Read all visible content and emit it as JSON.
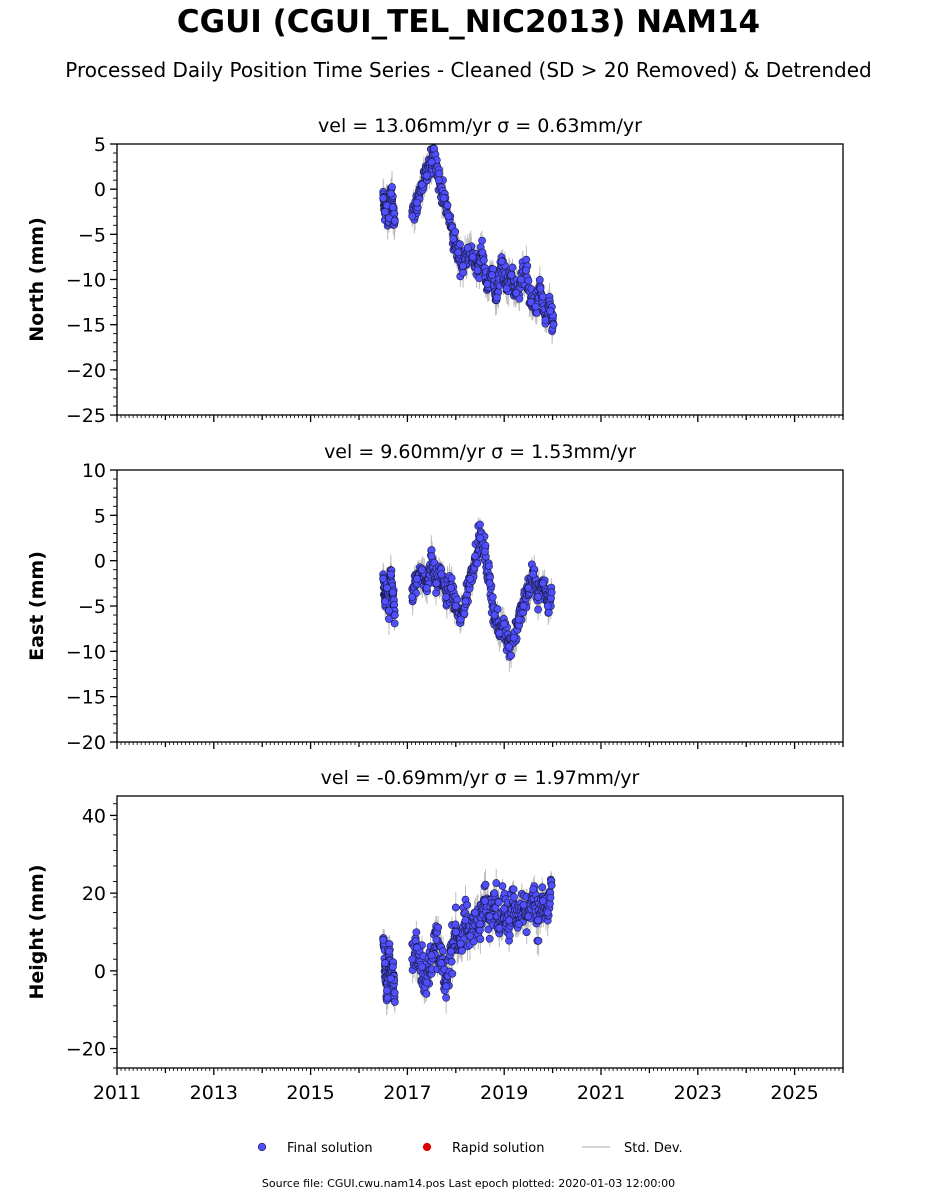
{
  "title": "CGUI (CGUI_TEL_NIC2013) NAM14",
  "subtitle": "Processed Daily Position Time Series - Cleaned (SD > 20 Removed) & Detrended",
  "footer": "Source file: CGUI.cwu.nam14.pos  Last epoch plotted: 2020-01-03 12:00:00",
  "legend": [
    {
      "label": "Final solution",
      "color": "#4f4fff",
      "kind": "marker"
    },
    {
      "label": "Rapid solution",
      "color": "#e00000",
      "kind": "marker"
    },
    {
      "label": "Std. Dev.",
      "color": "#c8c8c8",
      "kind": "line"
    }
  ],
  "colors": {
    "final": "#4f4fff",
    "marker_edge": "#1a1a40",
    "errorbar": "#bdbdbd"
  },
  "chart_data": [
    {
      "type": "scatter",
      "title": "vel = 13.06mm/yr   σ = 0.63mm/yr",
      "ylabel": "North (mm)",
      "xlim": [
        2011,
        2026
      ],
      "ylim": [
        -25,
        5
      ],
      "yticks": [
        -25,
        -20,
        -15,
        -10,
        -5,
        0,
        5
      ],
      "series": [
        {
          "values": [
            [
              2016.5,
              -1.0
            ],
            [
              2016.54,
              -2.5
            ],
            [
              2016.58,
              -1.8
            ],
            [
              2016.62,
              -3.2
            ],
            [
              2016.66,
              -0.5
            ],
            [
              2016.7,
              -2.0
            ],
            [
              2016.74,
              -3.5
            ],
            [
              2017.1,
              -3.0
            ],
            [
              2017.2,
              -1.5
            ],
            [
              2017.3,
              0.5
            ],
            [
              2017.4,
              1.5
            ],
            [
              2017.5,
              3.0
            ],
            [
              2017.55,
              4.5
            ],
            [
              2017.65,
              1.0
            ],
            [
              2017.75,
              -1.0
            ],
            [
              2017.85,
              -3.0
            ],
            [
              2017.95,
              -5.5
            ],
            [
              2018.05,
              -7.0
            ],
            [
              2018.15,
              -8.5
            ],
            [
              2018.25,
              -6.5
            ],
            [
              2018.35,
              -7.5
            ],
            [
              2018.45,
              -9.0
            ],
            [
              2018.55,
              -7.0
            ],
            [
              2018.65,
              -10.5
            ],
            [
              2018.75,
              -9.5
            ],
            [
              2018.85,
              -12.0
            ],
            [
              2018.95,
              -8.0
            ],
            [
              2019.05,
              -11.0
            ],
            [
              2019.15,
              -9.5
            ],
            [
              2019.25,
              -11.5
            ],
            [
              2019.35,
              -10.0
            ],
            [
              2019.45,
              -9.0
            ],
            [
              2019.55,
              -12.5
            ],
            [
              2019.65,
              -13.0
            ],
            [
              2019.75,
              -11.0
            ],
            [
              2019.85,
              -14.5
            ],
            [
              2019.95,
              -13.5
            ],
            [
              2020.02,
              -15.0
            ]
          ]
        }
      ]
    },
    {
      "type": "scatter",
      "title": "vel = 9.60mm/yr   σ = 1.53mm/yr",
      "ylabel": "East (mm)",
      "xlim": [
        2011,
        2026
      ],
      "ylim": [
        -20,
        10
      ],
      "yticks": [
        -20,
        -15,
        -10,
        -5,
        0,
        5,
        10
      ],
      "series": [
        {
          "values": [
            [
              2016.5,
              -2.0
            ],
            [
              2016.54,
              -4.5
            ],
            [
              2016.58,
              -3.0
            ],
            [
              2016.62,
              -5.5
            ],
            [
              2016.66,
              -1.5
            ],
            [
              2016.7,
              -3.5
            ],
            [
              2016.74,
              -6.0
            ],
            [
              2017.1,
              -4.0
            ],
            [
              2017.2,
              -2.0
            ],
            [
              2017.3,
              -1.0
            ],
            [
              2017.4,
              -3.0
            ],
            [
              2017.5,
              0.5
            ],
            [
              2017.6,
              -2.5
            ],
            [
              2017.7,
              -1.5
            ],
            [
              2017.8,
              -4.0
            ],
            [
              2017.9,
              -3.0
            ],
            [
              2018.0,
              -5.0
            ],
            [
              2018.1,
              -6.5
            ],
            [
              2018.2,
              -4.5
            ],
            [
              2018.3,
              -2.0
            ],
            [
              2018.4,
              0.5
            ],
            [
              2018.5,
              2.5
            ],
            [
              2018.6,
              1.0
            ],
            [
              2018.7,
              -2.5
            ],
            [
              2018.8,
              -6.0
            ],
            [
              2018.9,
              -8.0
            ],
            [
              2019.0,
              -7.0
            ],
            [
              2019.1,
              -9.5
            ],
            [
              2019.2,
              -8.5
            ],
            [
              2019.3,
              -6.5
            ],
            [
              2019.4,
              -5.0
            ],
            [
              2019.5,
              -3.0
            ],
            [
              2019.6,
              -1.5
            ],
            [
              2019.7,
              -4.0
            ],
            [
              2019.8,
              -2.5
            ],
            [
              2019.9,
              -5.0
            ],
            [
              2019.98,
              -3.5
            ]
          ]
        }
      ]
    },
    {
      "type": "scatter",
      "title": "vel = -0.69mm/yr   σ = 1.97mm/yr",
      "ylabel": "Height (mm)",
      "xlim": [
        2011,
        2026
      ],
      "ylim": [
        -25,
        45
      ],
      "yticks": [
        -20,
        0,
        20,
        40
      ],
      "xticks": [
        2011,
        2013,
        2015,
        2017,
        2019,
        2021,
        2023,
        2025
      ],
      "series": [
        {
          "values": [
            [
              2016.5,
              8.0
            ],
            [
              2016.54,
              2.0
            ],
            [
              2016.58,
              -5.0
            ],
            [
              2016.62,
              5.0
            ],
            [
              2016.66,
              -2.0
            ],
            [
              2016.7,
              1.0
            ],
            [
              2016.74,
              -8.0
            ],
            [
              2017.1,
              3.0
            ],
            [
              2017.2,
              6.0
            ],
            [
              2017.3,
              1.0
            ],
            [
              2017.4,
              -3.0
            ],
            [
              2017.5,
              4.0
            ],
            [
              2017.6,
              8.0
            ],
            [
              2017.7,
              2.0
            ],
            [
              2017.8,
              -4.0
            ],
            [
              2017.9,
              5.0
            ],
            [
              2018.0,
              10.0
            ],
            [
              2018.1,
              7.0
            ],
            [
              2018.2,
              13.0
            ],
            [
              2018.3,
              9.0
            ],
            [
              2018.4,
              15.0
            ],
            [
              2018.5,
              12.0
            ],
            [
              2018.6,
              18.0
            ],
            [
              2018.7,
              14.0
            ],
            [
              2018.8,
              20.0
            ],
            [
              2018.9,
              11.0
            ],
            [
              2019.0,
              16.0
            ],
            [
              2019.1,
              13.0
            ],
            [
              2019.2,
              19.0
            ],
            [
              2019.3,
              12.0
            ],
            [
              2019.4,
              17.0
            ],
            [
              2019.5,
              14.0
            ],
            [
              2019.6,
              21.0
            ],
            [
              2019.7,
              13.0
            ],
            [
              2019.8,
              18.0
            ],
            [
              2019.9,
              15.0
            ],
            [
              2019.98,
              22.0
            ]
          ]
        }
      ]
    }
  ]
}
